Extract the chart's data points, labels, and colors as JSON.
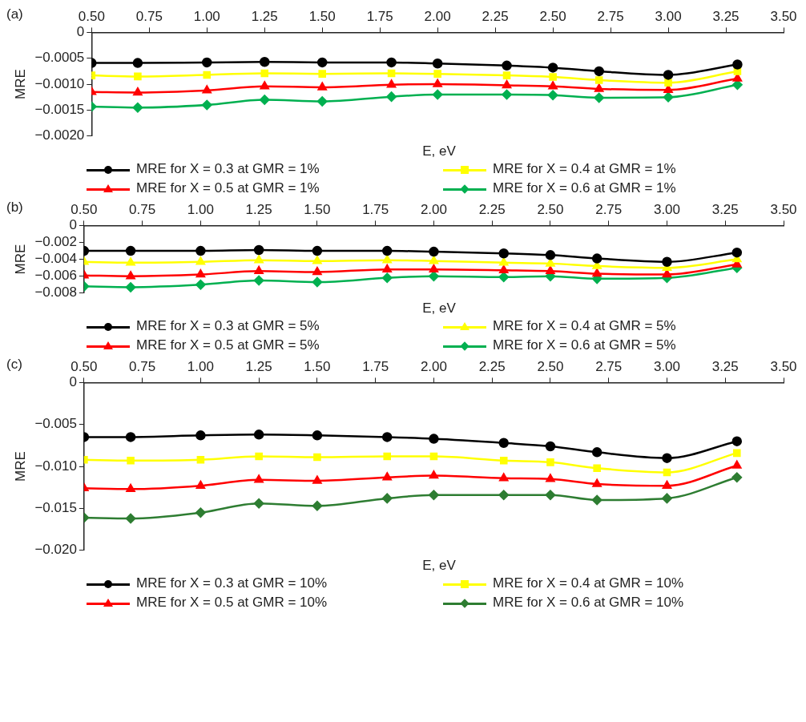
{
  "chart_data": [
    {
      "type": "line",
      "title": "(a)",
      "xlabel": "E, eV",
      "ylabel": "MRE",
      "x": [
        0.5,
        0.7,
        1.0,
        1.25,
        1.5,
        1.8,
        2.0,
        2.3,
        2.5,
        2.7,
        3.0,
        3.3
      ],
      "xlim": [
        0.5,
        3.5
      ],
      "xticks": [
        {
          "value": 0.5,
          "label": "0.50"
        },
        {
          "value": 0.75,
          "label": "0.75"
        },
        {
          "value": 1.0,
          "label": "1.00"
        },
        {
          "value": 1.25,
          "label": "1.25"
        },
        {
          "value": 1.5,
          "label": "1.50"
        },
        {
          "value": 1.75,
          "label": "1.75"
        },
        {
          "value": 2.0,
          "label": "2.00"
        },
        {
          "value": 2.25,
          "label": "2.25"
        },
        {
          "value": 2.5,
          "label": "2.50"
        },
        {
          "value": 2.75,
          "label": "2.75"
        },
        {
          "value": 3.0,
          "label": "3.00"
        },
        {
          "value": 3.25,
          "label": "3.25"
        },
        {
          "value": 3.5,
          "label": "3.50"
        }
      ],
      "ylim": [
        -0.002,
        0
      ],
      "yticks": [
        {
          "value": 0,
          "label": "0"
        },
        {
          "value": -0.0005,
          "label": "−0.0005"
        },
        {
          "value": -0.001,
          "label": "−0.0010"
        },
        {
          "value": -0.0015,
          "label": "−0.0015"
        },
        {
          "value": -0.002,
          "label": "−0.0020"
        }
      ],
      "grid": false,
      "legend": "bottom",
      "series": [
        {
          "name": "MRE for X = 0.3 at GMR = 1%",
          "color": "#000000",
          "marker": "circle",
          "values": [
            -0.00059,
            -0.00059,
            -0.00058,
            -0.00057,
            -0.00058,
            -0.00058,
            -0.0006,
            -0.00064,
            -0.00068,
            -0.00075,
            -0.00082,
            -0.00062
          ]
        },
        {
          "name": "MRE for X = 0.4 at GMR = 1%",
          "color": "#ffff00",
          "marker": "square",
          "values": [
            -0.00083,
            -0.00085,
            -0.00082,
            -0.00079,
            -0.0008,
            -0.00079,
            -0.0008,
            -0.00083,
            -0.00086,
            -0.00092,
            -0.00097,
            -0.00075
          ]
        },
        {
          "name": "MRE for X = 0.5 at GMR = 1%",
          "color": "#ff0000",
          "marker": "triangle",
          "values": [
            -0.00115,
            -0.00116,
            -0.00112,
            -0.00104,
            -0.00106,
            -0.00101,
            -0.001,
            -0.00102,
            -0.00104,
            -0.00109,
            -0.00111,
            -0.00089
          ]
        },
        {
          "name": "MRE for X = 0.6 at GMR = 1%",
          "color": "#00b050",
          "marker": "diamond",
          "values": [
            -0.00143,
            -0.00145,
            -0.0014,
            -0.0013,
            -0.00133,
            -0.00124,
            -0.0012,
            -0.0012,
            -0.00121,
            -0.00126,
            -0.00125,
            -0.00101
          ]
        }
      ]
    },
    {
      "type": "line",
      "title": "(b)",
      "xlabel": "E, eV",
      "ylabel": "MRE",
      "x": [
        0.5,
        0.7,
        1.0,
        1.25,
        1.5,
        1.8,
        2.0,
        2.3,
        2.5,
        2.7,
        3.0,
        3.3
      ],
      "xlim": [
        0.5,
        3.5
      ],
      "xticks": [
        {
          "value": 0.5,
          "label": "0.50"
        },
        {
          "value": 0.75,
          "label": "0.75"
        },
        {
          "value": 1.0,
          "label": "1.00"
        },
        {
          "value": 1.25,
          "label": "1.25"
        },
        {
          "value": 1.5,
          "label": "1.50"
        },
        {
          "value": 1.75,
          "label": "1.75"
        },
        {
          "value": 2.0,
          "label": "2.00"
        },
        {
          "value": 2.25,
          "label": "2.25"
        },
        {
          "value": 2.5,
          "label": "2.50"
        },
        {
          "value": 2.75,
          "label": "2.75"
        },
        {
          "value": 3.0,
          "label": "3.00"
        },
        {
          "value": 3.25,
          "label": "3.25"
        },
        {
          "value": 3.5,
          "label": "3.50"
        }
      ],
      "ylim": [
        -0.008,
        0
      ],
      "yticks": [
        {
          "value": 0,
          "label": "0"
        },
        {
          "value": -0.002,
          "label": "−0.002"
        },
        {
          "value": -0.004,
          "label": "−0.004"
        },
        {
          "value": -0.006,
          "label": "−0.006"
        },
        {
          "value": -0.008,
          "label": "−0.008"
        }
      ],
      "grid": false,
      "legend": "bottom",
      "series": [
        {
          "name": "MRE for X = 0.3 at GMR = 5%",
          "color": "#000000",
          "marker": "circle",
          "values": [
            -0.003,
            -0.003,
            -0.003,
            -0.0029,
            -0.003,
            -0.003,
            -0.0031,
            -0.0033,
            -0.0035,
            -0.0039,
            -0.0043,
            -0.0032
          ]
        },
        {
          "name": "MRE for X = 0.4 at GMR = 5%",
          "color": "#ffff00",
          "marker": "triangle",
          "values": [
            -0.0043,
            -0.0044,
            -0.0043,
            -0.0041,
            -0.0042,
            -0.0041,
            -0.0042,
            -0.0044,
            -0.0045,
            -0.0048,
            -0.005,
            -0.004
          ]
        },
        {
          "name": "MRE for X = 0.5 at GMR = 5%",
          "color": "#ff0000",
          "marker": "triangle",
          "values": [
            -0.0059,
            -0.006,
            -0.0058,
            -0.0054,
            -0.0055,
            -0.0052,
            -0.0052,
            -0.0053,
            -0.0054,
            -0.0057,
            -0.0058,
            -0.0046
          ]
        },
        {
          "name": "MRE for X = 0.6 at GMR = 5%",
          "color": "#00b050",
          "marker": "diamond",
          "values": [
            -0.0072,
            -0.0073,
            -0.007,
            -0.0065,
            -0.0067,
            -0.0062,
            -0.006,
            -0.0061,
            -0.006,
            -0.0063,
            -0.0062,
            -0.005
          ]
        }
      ]
    },
    {
      "type": "line",
      "title": "(c)",
      "xlabel": "E, eV",
      "ylabel": "MRE",
      "x": [
        0.5,
        0.7,
        1.0,
        1.25,
        1.5,
        1.8,
        2.0,
        2.3,
        2.5,
        2.7,
        3.0,
        3.3
      ],
      "xlim": [
        0.5,
        3.5
      ],
      "xticks": [
        {
          "value": 0.5,
          "label": "0.50"
        },
        {
          "value": 0.75,
          "label": "0.75"
        },
        {
          "value": 1.0,
          "label": "1.00"
        },
        {
          "value": 1.25,
          "label": "1.25"
        },
        {
          "value": 1.5,
          "label": "1.50"
        },
        {
          "value": 1.75,
          "label": "1.75"
        },
        {
          "value": 2.0,
          "label": "2.00"
        },
        {
          "value": 2.25,
          "label": "2.25"
        },
        {
          "value": 2.5,
          "label": "2.50"
        },
        {
          "value": 2.75,
          "label": "2.75"
        },
        {
          "value": 3.0,
          "label": "3.00"
        },
        {
          "value": 3.25,
          "label": "3.25"
        },
        {
          "value": 3.5,
          "label": "3.50"
        }
      ],
      "ylim": [
        -0.02,
        0
      ],
      "yticks": [
        {
          "value": 0,
          "label": "0"
        },
        {
          "value": -0.005,
          "label": "−0.005"
        },
        {
          "value": -0.01,
          "label": "−0.010"
        },
        {
          "value": -0.015,
          "label": "−0.015"
        },
        {
          "value": -0.02,
          "label": "−0.020"
        }
      ],
      "grid": false,
      "legend": "bottom",
      "series": [
        {
          "name": "MRE for X = 0.3 at GMR = 10%",
          "color": "#000000",
          "marker": "circle",
          "values": [
            -0.0065,
            -0.0065,
            -0.0063,
            -0.0062,
            -0.0063,
            -0.0065,
            -0.0067,
            -0.0072,
            -0.0076,
            -0.0083,
            -0.009,
            -0.007
          ]
        },
        {
          "name": "MRE for X = 0.4 at GMR = 10%",
          "color": "#ffff00",
          "marker": "square",
          "values": [
            -0.0092,
            -0.0093,
            -0.0092,
            -0.0088,
            -0.0089,
            -0.0088,
            -0.0088,
            -0.0093,
            -0.0095,
            -0.0102,
            -0.0107,
            -0.0084
          ]
        },
        {
          "name": "MRE for X = 0.5 at GMR = 10%",
          "color": "#ff0000",
          "marker": "triangle",
          "values": [
            -0.0126,
            -0.0127,
            -0.0123,
            -0.0116,
            -0.0117,
            -0.0113,
            -0.0111,
            -0.0114,
            -0.0115,
            -0.0121,
            -0.0123,
            -0.0099
          ]
        },
        {
          "name": "MRE for X = 0.6 at GMR = 10%",
          "color": "#2e7d32",
          "marker": "diamond",
          "values": [
            -0.0161,
            -0.0162,
            -0.0155,
            -0.0144,
            -0.0147,
            -0.0138,
            -0.0134,
            -0.0134,
            -0.0134,
            -0.014,
            -0.0138,
            -0.0113
          ]
        }
      ]
    }
  ]
}
